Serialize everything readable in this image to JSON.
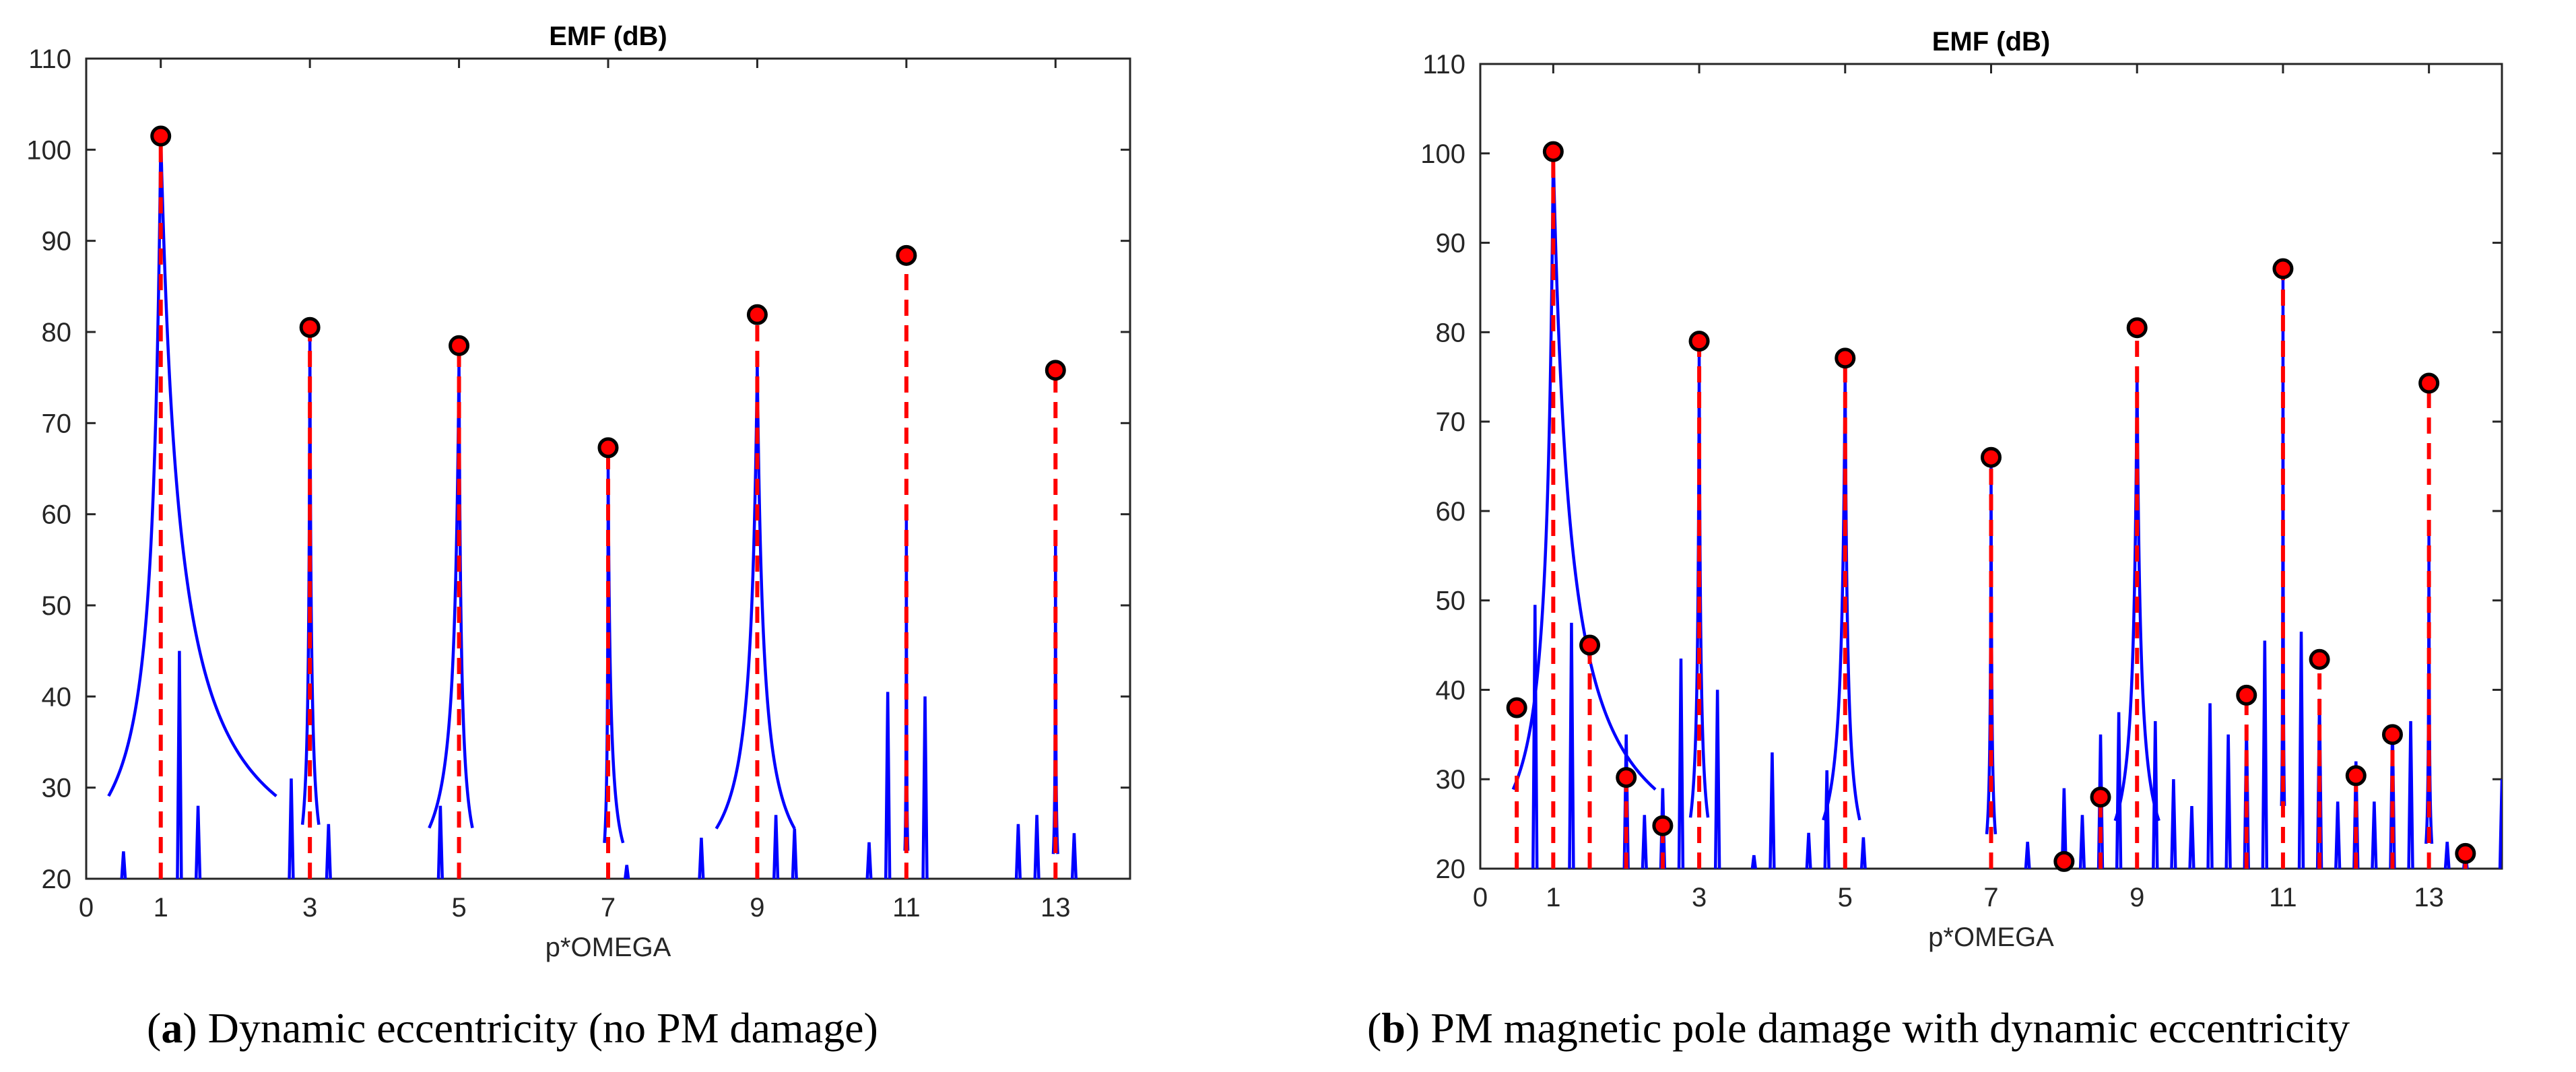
{
  "chart_data": [
    {
      "id": "a",
      "type": "line",
      "title": "EMF (dB)",
      "xlabel": "p*OMEGA",
      "ylabel": "",
      "xlim": [
        0,
        14
      ],
      "ylim": [
        20,
        110
      ],
      "xticks": [
        "0",
        "1",
        "3",
        "5",
        "7",
        "9",
        "11",
        "13"
      ],
      "xtick_values": [
        0,
        1,
        3,
        5,
        7,
        9,
        11,
        13
      ],
      "yticks": [
        "20",
        "30",
        "40",
        "50",
        "60",
        "70",
        "80",
        "90",
        "100",
        "110"
      ],
      "ytick_values": [
        20,
        30,
        40,
        50,
        60,
        70,
        80,
        90,
        100,
        110
      ],
      "line_color": "#0000ff",
      "marker_color": "#ff0000",
      "stem_color": "#ff0000",
      "markers": [
        {
          "x": 1,
          "y": 101.5
        },
        {
          "x": 3,
          "y": 80.5
        },
        {
          "x": 5,
          "y": 78.5
        },
        {
          "x": 7,
          "y": 67.3
        },
        {
          "x": 9,
          "y": 81.9
        },
        {
          "x": 11,
          "y": 88.4
        },
        {
          "x": 13,
          "y": 75.8
        }
      ],
      "peaks": [
        {
          "x": 1,
          "y": 101.5,
          "lw": 0.7,
          "rw": 1.55
        },
        {
          "x": 3,
          "y": 79.5,
          "lw": 0.1,
          "rw": 0.12
        },
        {
          "x": 5,
          "y": 77.0,
          "lw": 0.4,
          "rw": 0.18
        },
        {
          "x": 7,
          "y": 65.5,
          "lw": 0.05,
          "rw": 0.2
        },
        {
          "x": 9,
          "y": 76.5,
          "lw": 0.55,
          "rw": 0.5
        },
        {
          "x": 11,
          "y": 59.5,
          "lw": 0.02,
          "rw": 0.02
        },
        {
          "x": 13,
          "y": 57.0,
          "lw": 0.03,
          "rw": 0.03
        }
      ],
      "spikes": [
        {
          "x": 0.5,
          "y": 23
        },
        {
          "x": 1.25,
          "y": 45
        },
        {
          "x": 1.5,
          "y": 28
        },
        {
          "x": 2.75,
          "y": 31
        },
        {
          "x": 3.25,
          "y": 26
        },
        {
          "x": 4.75,
          "y": 28
        },
        {
          "x": 7.25,
          "y": 21.5
        },
        {
          "x": 8.25,
          "y": 24.5
        },
        {
          "x": 9.25,
          "y": 27
        },
        {
          "x": 9.5,
          "y": 25.5
        },
        {
          "x": 10.5,
          "y": 24
        },
        {
          "x": 10.75,
          "y": 40.5
        },
        {
          "x": 11.25,
          "y": 40
        },
        {
          "x": 12.5,
          "y": 26
        },
        {
          "x": 12.75,
          "y": 27
        },
        {
          "x": 13.25,
          "y": 25
        }
      ]
    },
    {
      "id": "b",
      "type": "line",
      "title": "EMF (dB)",
      "xlabel": "p*OMEGA",
      "ylabel": "",
      "xlim": [
        0,
        14
      ],
      "ylim": [
        20,
        110
      ],
      "xticks": [
        "0",
        "1",
        "3",
        "5",
        "7",
        "9",
        "11",
        "13"
      ],
      "xtick_values": [
        0,
        1,
        3,
        5,
        7,
        9,
        11,
        13
      ],
      "yticks": [
        "20",
        "30",
        "40",
        "50",
        "60",
        "70",
        "80",
        "90",
        "100",
        "110"
      ],
      "ytick_values": [
        20,
        30,
        40,
        50,
        60,
        70,
        80,
        90,
        100,
        110
      ],
      "line_color": "#0000ff",
      "marker_color": "#ff0000",
      "stem_color": "#ff0000",
      "markers": [
        {
          "x": 0.5,
          "y": 38.0
        },
        {
          "x": 1,
          "y": 100.2
        },
        {
          "x": 1.5,
          "y": 45.0
        },
        {
          "x": 2,
          "y": 30.2
        },
        {
          "x": 2.5,
          "y": 24.8
        },
        {
          "x": 3,
          "y": 79.0
        },
        {
          "x": 5,
          "y": 77.1
        },
        {
          "x": 7,
          "y": 66.0
        },
        {
          "x": 8,
          "y": 20.8
        },
        {
          "x": 8.5,
          "y": 28.0
        },
        {
          "x": 9,
          "y": 80.5
        },
        {
          "x": 10.5,
          "y": 39.4
        },
        {
          "x": 11,
          "y": 87.1
        },
        {
          "x": 11.5,
          "y": 43.4
        },
        {
          "x": 12,
          "y": 30.4
        },
        {
          "x": 12.5,
          "y": 35.0
        },
        {
          "x": 13,
          "y": 74.3
        },
        {
          "x": 13.5,
          "y": 21.7
        }
      ],
      "peaks": [
        {
          "x": 1,
          "y": 100.0,
          "lw": 0.55,
          "rw": 1.4
        },
        {
          "x": 3,
          "y": 78.0,
          "lw": 0.12,
          "rw": 0.12
        },
        {
          "x": 5,
          "y": 76.0,
          "lw": 0.3,
          "rw": 0.2
        },
        {
          "x": 7,
          "y": 65.0,
          "lw": 0.06,
          "rw": 0.06
        },
        {
          "x": 9,
          "y": 75.5,
          "lw": 0.3,
          "rw": 0.3
        },
        {
          "x": 11,
          "y": 87.1,
          "lw": 0.02,
          "rw": 0.02
        },
        {
          "x": 13,
          "y": 57.5,
          "lw": 0.04,
          "rw": 0.04
        }
      ],
      "spikes": [
        {
          "x": 0.75,
          "y": 49.5
        },
        {
          "x": 1.25,
          "y": 47.5
        },
        {
          "x": 2,
          "y": 35
        },
        {
          "x": 2.25,
          "y": 26
        },
        {
          "x": 2.5,
          "y": 29
        },
        {
          "x": 2.75,
          "y": 43.5
        },
        {
          "x": 3.25,
          "y": 40
        },
        {
          "x": 3.75,
          "y": 21.5
        },
        {
          "x": 4,
          "y": 33
        },
        {
          "x": 4.5,
          "y": 24
        },
        {
          "x": 4.75,
          "y": 31
        },
        {
          "x": 5.25,
          "y": 23.5
        },
        {
          "x": 7.5,
          "y": 23
        },
        {
          "x": 8,
          "y": 29
        },
        {
          "x": 8.25,
          "y": 26
        },
        {
          "x": 8.5,
          "y": 35
        },
        {
          "x": 8.75,
          "y": 37.5
        },
        {
          "x": 9.25,
          "y": 36.5
        },
        {
          "x": 9.5,
          "y": 30
        },
        {
          "x": 9.75,
          "y": 27
        },
        {
          "x": 10,
          "y": 38.5
        },
        {
          "x": 10.25,
          "y": 35
        },
        {
          "x": 10.5,
          "y": 36
        },
        {
          "x": 10.75,
          "y": 45.5
        },
        {
          "x": 11.25,
          "y": 46.5
        },
        {
          "x": 11.5,
          "y": 39
        },
        {
          "x": 11.75,
          "y": 27.5
        },
        {
          "x": 12,
          "y": 32
        },
        {
          "x": 12.25,
          "y": 27.5
        },
        {
          "x": 12.5,
          "y": 36
        },
        {
          "x": 12.75,
          "y": 36.5
        },
        {
          "x": 13.25,
          "y": 23
        },
        {
          "x": 13.5,
          "y": 22
        },
        {
          "x": 14,
          "y": 30
        }
      ]
    }
  ],
  "captions": {
    "a": {
      "label": "(a)",
      "letter": "a",
      "text": "Dynamic eccentricity (no PM damage)"
    },
    "b": {
      "label": "(b)",
      "letter": "b",
      "text": "PM magnetic pole damage with dynamic eccentricity"
    }
  }
}
